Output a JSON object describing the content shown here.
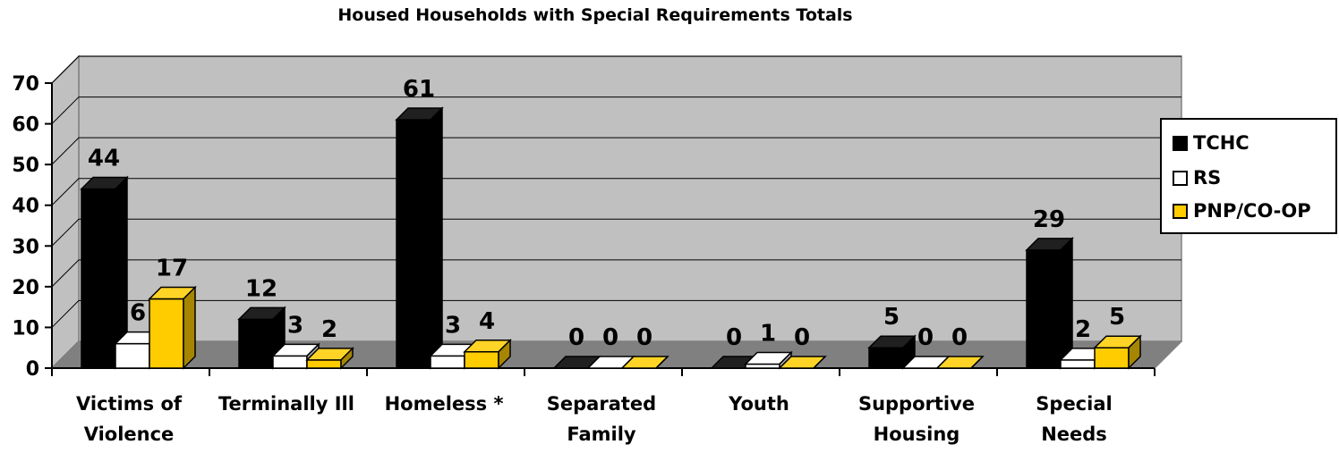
{
  "chart_data": {
    "type": "bar",
    "title": "Housed Households with Special Requirements Totals",
    "categories": [
      [
        "Victims of",
        "Violence"
      ],
      [
        "Terminally Ill"
      ],
      [
        "Homeless *"
      ],
      [
        "Separated",
        "Family"
      ],
      [
        "Youth"
      ],
      [
        "Supportive",
        "Housing"
      ],
      [
        "Special",
        "Needs"
      ]
    ],
    "series": [
      {
        "name": "TCHC",
        "values": [
          44,
          12,
          61,
          0,
          0,
          5,
          29
        ],
        "color": "#000000"
      },
      {
        "name": "RS",
        "values": [
          6,
          3,
          3,
          0,
          1,
          0,
          2
        ],
        "color": "#ffffff"
      },
      {
        "name": "PNP/CO-OP",
        "values": [
          17,
          2,
          4,
          0,
          0,
          0,
          5
        ],
        "color": "#ffcc00"
      }
    ],
    "ylim": [
      0,
      70
    ],
    "yticks": [
      "0",
      "10",
      "20",
      "30",
      "40",
      "50",
      "60",
      "70"
    ],
    "grid": true,
    "legend_position": "right",
    "wall_color": "#c0c0c0",
    "floor_color": "#808080"
  }
}
